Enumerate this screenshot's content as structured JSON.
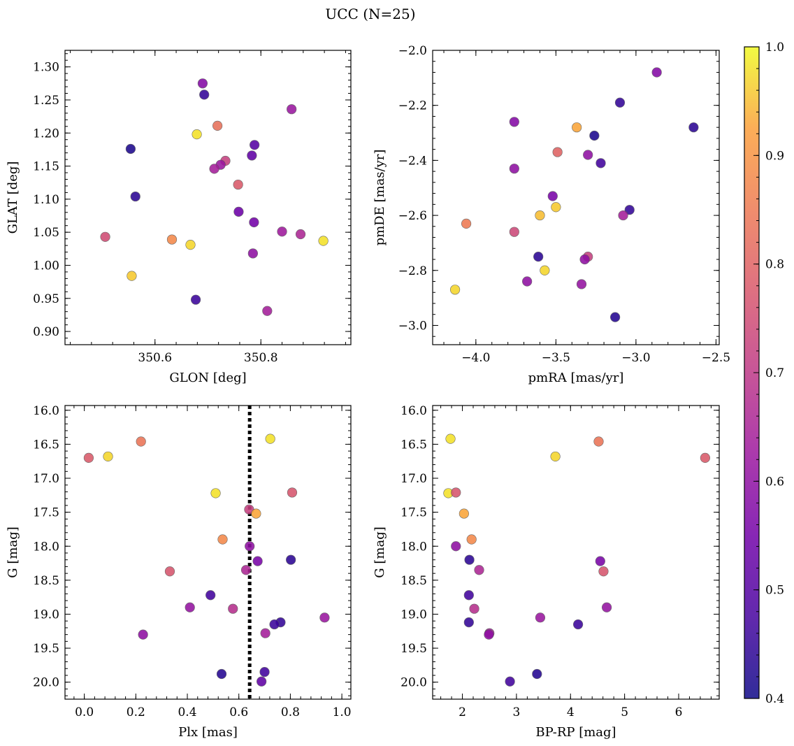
{
  "figure": {
    "title": "UCC (N=25)"
  },
  "colorbar": {
    "min": 0.4,
    "max": 1.0,
    "ticks": [
      0.4,
      0.5,
      0.6,
      0.7,
      0.8,
      0.9,
      1.0
    ],
    "tick_labels": [
      "0.4",
      "0.5",
      "0.6",
      "0.7",
      "0.8",
      "0.9",
      "1.0"
    ],
    "colormap": "plasma"
  },
  "chart_data": [
    {
      "type": "scatter",
      "xlabel": "GLON [deg]",
      "ylabel": "GLAT [deg]",
      "xlim": [
        350.43,
        350.97
      ],
      "ylim": [
        0.88,
        1.325
      ],
      "xticks": [
        350.6,
        350.8
      ],
      "xtick_labels": [
        "350.6",
        "350.8"
      ],
      "yticks": [
        0.9,
        0.95,
        1.0,
        1.05,
        1.1,
        1.15,
        1.2,
        1.25,
        1.3
      ],
      "ytick_labels": [
        "0.90",
        "0.95",
        "1.00",
        "1.05",
        "1.10",
        "1.15",
        "1.20",
        "1.25",
        "1.30"
      ],
      "y_inverted": false,
      "points": [
        {
          "x": 350.69,
          "y": 1.275,
          "c": 0.58
        },
        {
          "x": 350.693,
          "y": 1.258,
          "c": 0.45
        },
        {
          "x": 350.858,
          "y": 1.236,
          "c": 0.62
        },
        {
          "x": 350.718,
          "y": 1.211,
          "c": 0.83
        },
        {
          "x": 350.679,
          "y": 1.198,
          "c": 0.98
        },
        {
          "x": 350.788,
          "y": 1.182,
          "c": 0.5
        },
        {
          "x": 350.554,
          "y": 1.176,
          "c": 0.42
        },
        {
          "x": 350.783,
          "y": 1.166,
          "c": 0.52
        },
        {
          "x": 350.733,
          "y": 1.158,
          "c": 0.72
        },
        {
          "x": 350.724,
          "y": 1.152,
          "c": 0.62
        },
        {
          "x": 350.712,
          "y": 1.146,
          "c": 0.64
        },
        {
          "x": 350.757,
          "y": 1.122,
          "c": 0.78
        },
        {
          "x": 350.563,
          "y": 1.104,
          "c": 0.44
        },
        {
          "x": 350.758,
          "y": 1.081,
          "c": 0.54
        },
        {
          "x": 350.787,
          "y": 1.065,
          "c": 0.55
        },
        {
          "x": 350.84,
          "y": 1.051,
          "c": 0.63
        },
        {
          "x": 350.875,
          "y": 1.047,
          "c": 0.66
        },
        {
          "x": 350.506,
          "y": 1.043,
          "c": 0.75
        },
        {
          "x": 350.632,
          "y": 1.039,
          "c": 0.88
        },
        {
          "x": 350.918,
          "y": 1.037,
          "c": 0.98
        },
        {
          "x": 350.667,
          "y": 1.031,
          "c": 0.97
        },
        {
          "x": 350.785,
          "y": 1.018,
          "c": 0.6
        },
        {
          "x": 350.556,
          "y": 0.984,
          "c": 0.96
        },
        {
          "x": 350.677,
          "y": 0.948,
          "c": 0.46
        },
        {
          "x": 350.812,
          "y": 0.931,
          "c": 0.64
        }
      ]
    },
    {
      "type": "scatter",
      "xlabel": "pmRA [mas/yr]",
      "ylabel": "pmDE [mas/yr]",
      "xlim": [
        -4.27,
        -2.48
      ],
      "ylim": [
        -3.07,
        -2.0
      ],
      "xticks": [
        -4.0,
        -3.5,
        -3.0,
        -2.5
      ],
      "xtick_labels": [
        "−4.0",
        "−3.5",
        "−3.0",
        "−2.5"
      ],
      "yticks": [
        -3.0,
        -2.8,
        -2.6,
        -2.4,
        -2.2,
        -2.0
      ],
      "ytick_labels": [
        "−3.0",
        "−2.8",
        "−2.6",
        "−2.4",
        "−2.2",
        "−2.0"
      ],
      "y_inverted": false,
      "points": [
        {
          "x": -2.87,
          "y": -2.08,
          "c": 0.58
        },
        {
          "x": -3.1,
          "y": -2.19,
          "c": 0.45
        },
        {
          "x": -3.76,
          "y": -2.26,
          "c": 0.58
        },
        {
          "x": -3.37,
          "y": -2.28,
          "c": 0.93
        },
        {
          "x": -2.64,
          "y": -2.28,
          "c": 0.44
        },
        {
          "x": -3.26,
          "y": -2.31,
          "c": 0.42
        },
        {
          "x": -3.49,
          "y": -2.37,
          "c": 0.8
        },
        {
          "x": -3.3,
          "y": -2.38,
          "c": 0.6
        },
        {
          "x": -3.22,
          "y": -2.41,
          "c": 0.47
        },
        {
          "x": -3.76,
          "y": -2.43,
          "c": 0.6
        },
        {
          "x": -3.52,
          "y": -2.53,
          "c": 0.56
        },
        {
          "x": -3.5,
          "y": -2.57,
          "c": 0.96
        },
        {
          "x": -3.04,
          "y": -2.58,
          "c": 0.45
        },
        {
          "x": -3.6,
          "y": -2.6,
          "c": 0.95
        },
        {
          "x": -3.08,
          "y": -2.6,
          "c": 0.64
        },
        {
          "x": -4.06,
          "y": -2.63,
          "c": 0.85
        },
        {
          "x": -3.76,
          "y": -2.66,
          "c": 0.74
        },
        {
          "x": -3.61,
          "y": -2.75,
          "c": 0.44
        },
        {
          "x": -3.3,
          "y": -2.75,
          "c": 0.72
        },
        {
          "x": -3.32,
          "y": -2.76,
          "c": 0.6
        },
        {
          "x": -3.57,
          "y": -2.8,
          "c": 0.97
        },
        {
          "x": -3.68,
          "y": -2.84,
          "c": 0.6
        },
        {
          "x": -3.34,
          "y": -2.85,
          "c": 0.61
        },
        {
          "x": -4.13,
          "y": -2.87,
          "c": 0.97
        },
        {
          "x": -3.13,
          "y": -2.97,
          "c": 0.43
        }
      ]
    },
    {
      "type": "scatter",
      "xlabel": "Plx [mas]",
      "ylabel": "G [mag]",
      "xlim": [
        -0.075,
        1.035
      ],
      "ylim": [
        20.25,
        15.93
      ],
      "xticks": [
        0.0,
        0.2,
        0.4,
        0.6,
        0.8,
        1.0
      ],
      "xtick_labels": [
        "0.0",
        "0.2",
        "0.4",
        "0.6",
        "0.8",
        "1.0"
      ],
      "yticks": [
        16.0,
        16.5,
        17.0,
        17.5,
        18.0,
        18.5,
        19.0,
        19.5,
        20.0
      ],
      "ytick_labels": [
        "16.0",
        "16.5",
        "17.0",
        "17.5",
        "18.0",
        "18.5",
        "19.0",
        "19.5",
        "20.0"
      ],
      "y_inverted": true,
      "vline_x": 0.642,
      "points": [
        {
          "x": 0.017,
          "y": 16.7,
          "c": 0.78
        },
        {
          "x": 0.092,
          "y": 16.68,
          "c": 0.97
        },
        {
          "x": 0.22,
          "y": 16.46,
          "c": 0.84
        },
        {
          "x": 0.722,
          "y": 16.42,
          "c": 0.98
        },
        {
          "x": 0.51,
          "y": 17.22,
          "c": 0.98
        },
        {
          "x": 0.807,
          "y": 17.21,
          "c": 0.77
        },
        {
          "x": 0.64,
          "y": 17.46,
          "c": 0.72
        },
        {
          "x": 0.667,
          "y": 17.52,
          "c": 0.93
        },
        {
          "x": 0.537,
          "y": 17.9,
          "c": 0.88
        },
        {
          "x": 0.642,
          "y": 18.0,
          "c": 0.6
        },
        {
          "x": 0.673,
          "y": 18.22,
          "c": 0.56
        },
        {
          "x": 0.802,
          "y": 18.2,
          "c": 0.44
        },
        {
          "x": 0.332,
          "y": 18.37,
          "c": 0.77
        },
        {
          "x": 0.628,
          "y": 18.35,
          "c": 0.66
        },
        {
          "x": 0.49,
          "y": 18.72,
          "c": 0.47
        },
        {
          "x": 0.41,
          "y": 18.9,
          "c": 0.61
        },
        {
          "x": 0.577,
          "y": 18.92,
          "c": 0.68
        },
        {
          "x": 0.933,
          "y": 19.05,
          "c": 0.62
        },
        {
          "x": 0.762,
          "y": 19.12,
          "c": 0.45
        },
        {
          "x": 0.738,
          "y": 19.15,
          "c": 0.46
        },
        {
          "x": 0.703,
          "y": 19.28,
          "c": 0.64
        },
        {
          "x": 0.228,
          "y": 19.3,
          "c": 0.6
        },
        {
          "x": 0.533,
          "y": 19.88,
          "c": 0.43
        },
        {
          "x": 0.7,
          "y": 19.85,
          "c": 0.47
        },
        {
          "x": 0.688,
          "y": 19.99,
          "c": 0.52
        }
      ]
    },
    {
      "type": "scatter",
      "xlabel": "BP-RP [mag]",
      "ylabel": "G [mag]",
      "xlim": [
        1.45,
        6.75
      ],
      "ylim": [
        20.25,
        15.93
      ],
      "xticks": [
        2,
        3,
        4,
        5,
        6
      ],
      "xtick_labels": [
        "2",
        "3",
        "4",
        "5",
        "6"
      ],
      "yticks": [
        16.0,
        16.5,
        17.0,
        17.5,
        18.0,
        18.5,
        19.0,
        19.5,
        20.0
      ],
      "ytick_labels": [
        "16.0",
        "16.5",
        "17.0",
        "17.5",
        "18.0",
        "18.5",
        "19.0",
        "19.5",
        "20.0"
      ],
      "y_inverted": true,
      "points": [
        {
          "x": 1.78,
          "y": 16.42,
          "c": 0.98
        },
        {
          "x": 4.52,
          "y": 16.46,
          "c": 0.84
        },
        {
          "x": 3.72,
          "y": 16.68,
          "c": 0.97
        },
        {
          "x": 6.49,
          "y": 16.7,
          "c": 0.78
        },
        {
          "x": 1.74,
          "y": 17.22,
          "c": 0.98
        },
        {
          "x": 1.88,
          "y": 17.21,
          "c": 0.77
        },
        {
          "x": 2.03,
          "y": 17.52,
          "c": 0.93
        },
        {
          "x": 2.17,
          "y": 17.9,
          "c": 0.88
        },
        {
          "x": 1.88,
          "y": 18.0,
          "c": 0.6
        },
        {
          "x": 2.13,
          "y": 18.2,
          "c": 0.44
        },
        {
          "x": 4.55,
          "y": 18.22,
          "c": 0.56
        },
        {
          "x": 4.61,
          "y": 18.37,
          "c": 0.77
        },
        {
          "x": 2.31,
          "y": 18.35,
          "c": 0.66
        },
        {
          "x": 2.12,
          "y": 18.72,
          "c": 0.47
        },
        {
          "x": 2.22,
          "y": 18.92,
          "c": 0.68
        },
        {
          "x": 4.67,
          "y": 18.9,
          "c": 0.61
        },
        {
          "x": 3.44,
          "y": 19.05,
          "c": 0.62
        },
        {
          "x": 2.12,
          "y": 19.12,
          "c": 0.45
        },
        {
          "x": 4.14,
          "y": 19.15,
          "c": 0.46
        },
        {
          "x": 2.5,
          "y": 19.28,
          "c": 0.64
        },
        {
          "x": 2.49,
          "y": 19.3,
          "c": 0.6
        },
        {
          "x": 3.38,
          "y": 19.88,
          "c": 0.43
        },
        {
          "x": 2.88,
          "y": 19.99,
          "c": 0.47
        }
      ]
    }
  ]
}
